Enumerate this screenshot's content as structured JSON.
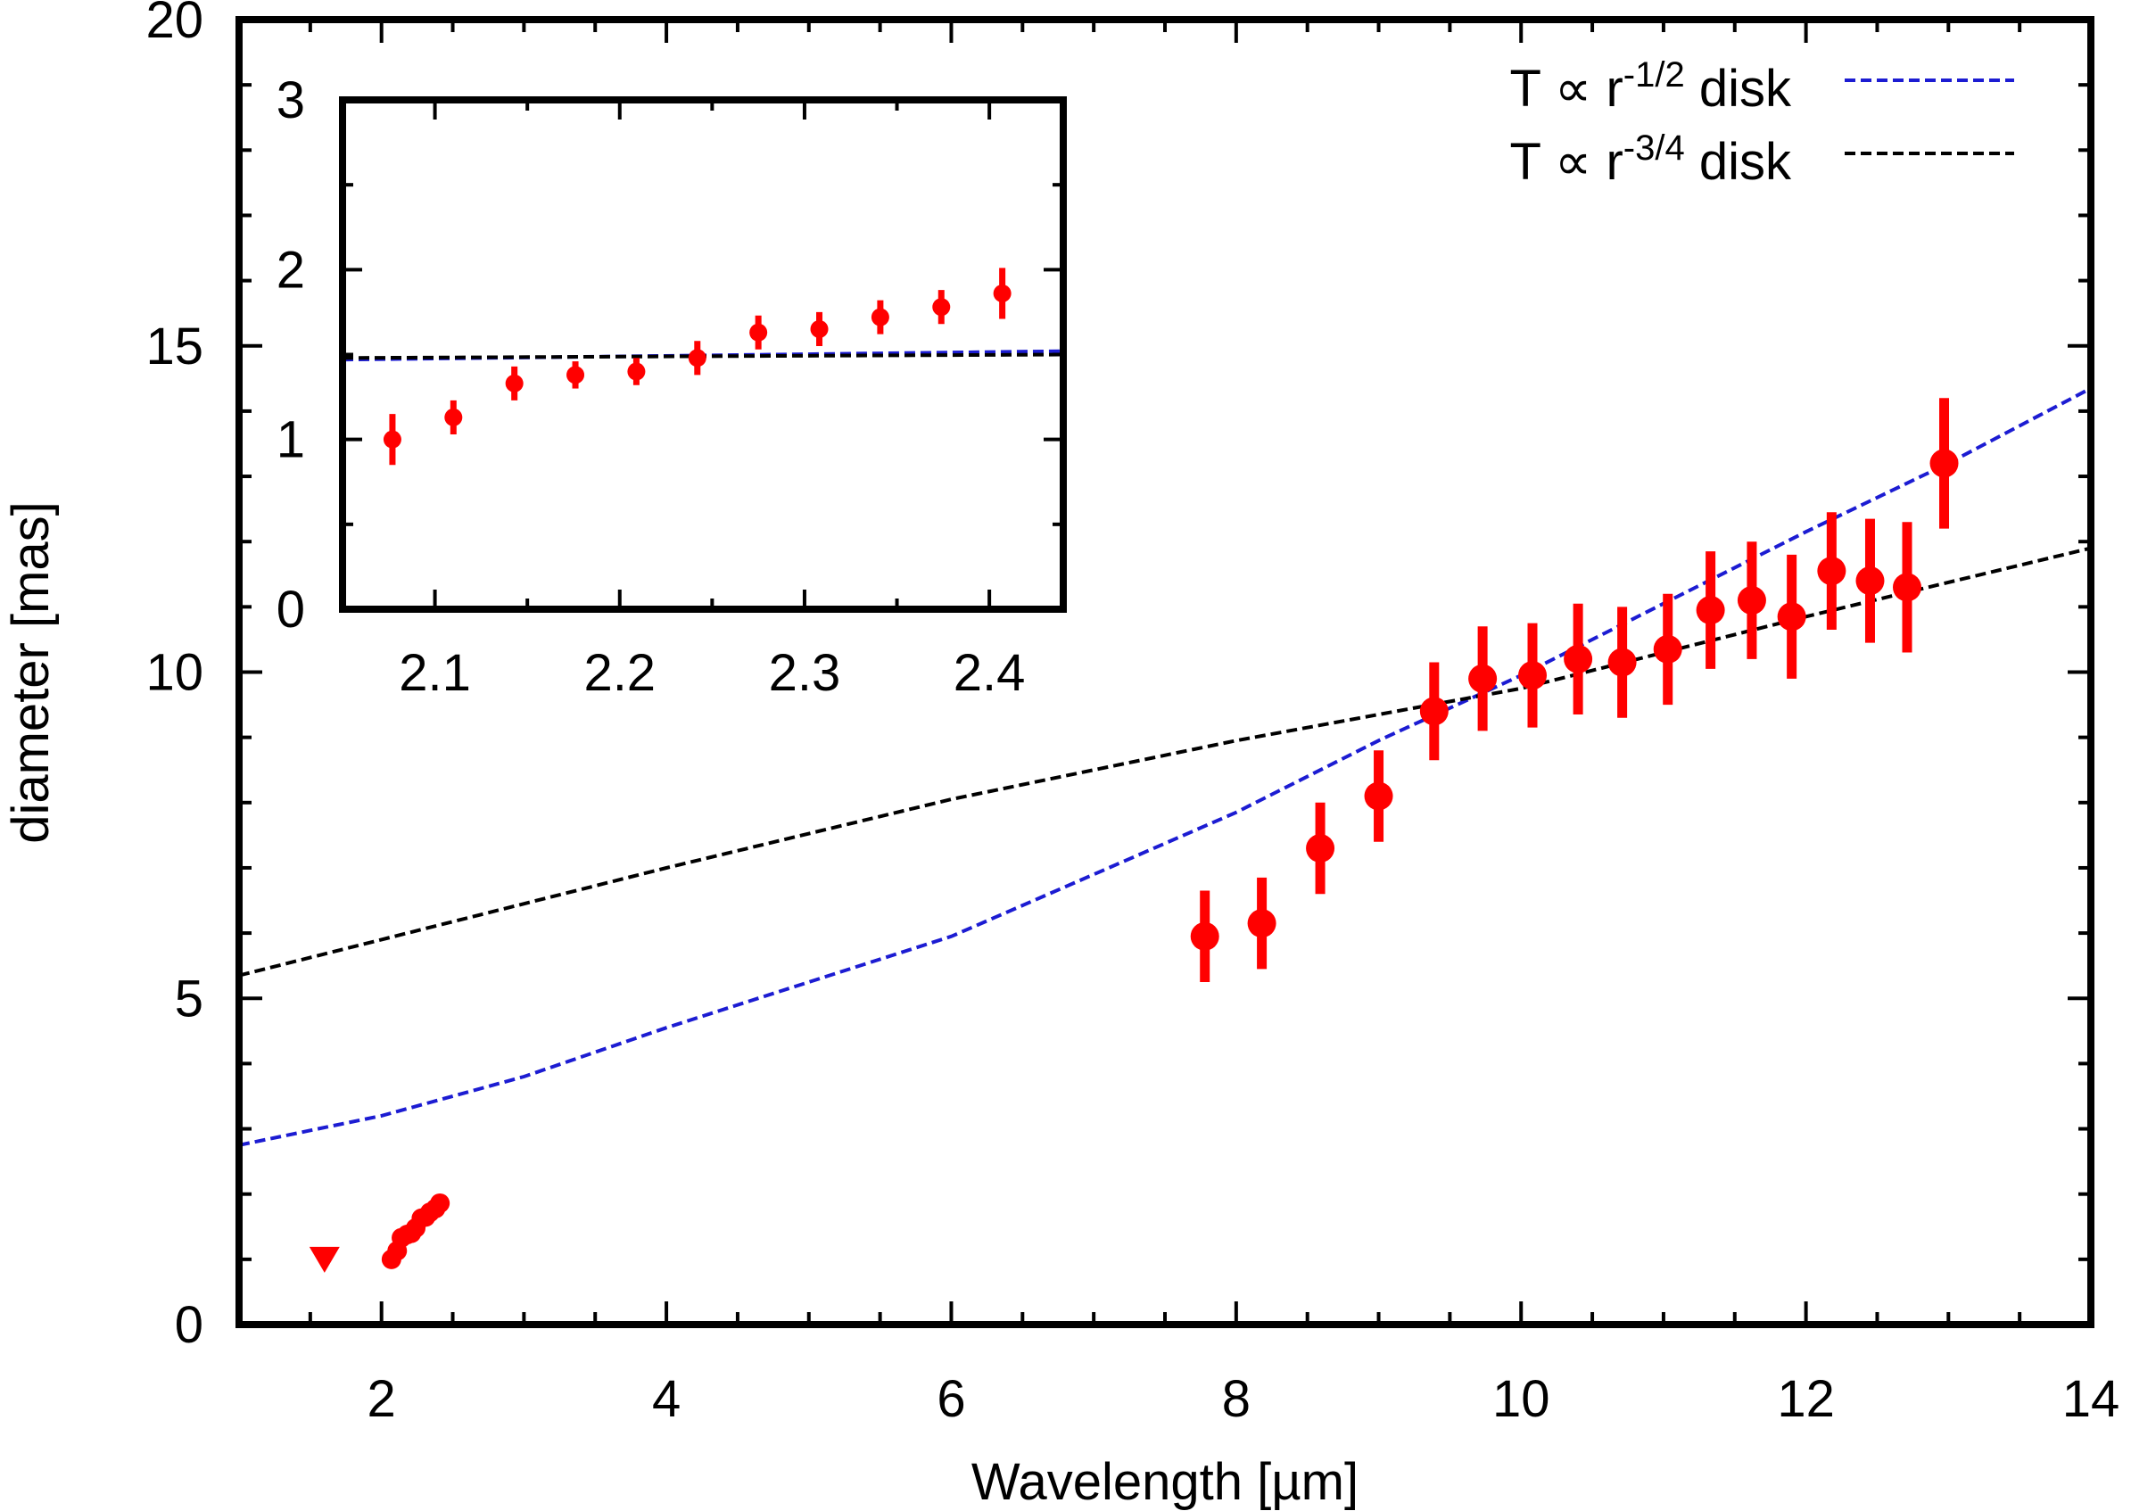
{
  "chart_data": [
    {
      "type": "scatter",
      "title": "",
      "xlabel": "Wavelength [µm]",
      "ylabel": "diameter [mas]",
      "xlim": [
        1.0,
        14.0
      ],
      "ylim": [
        0,
        20
      ],
      "xticks": [
        2,
        4,
        6,
        8,
        10,
        12,
        14
      ],
      "yticks": [
        0,
        5,
        10,
        15,
        20
      ],
      "grid": false,
      "legend_position": "top-right",
      "colors": {
        "points": "#ff0000",
        "model_half": "#1c1cd2",
        "model_three_quarter": "#000000",
        "frame": "#000000"
      },
      "series": [
        {
          "name": "T ∝ r^-1/2 disk",
          "kind": "dashed-line",
          "x": [
            1.0,
            2,
            3,
            4,
            5,
            6,
            7,
            8,
            9,
            10,
            11,
            12,
            13,
            14
          ],
          "y": [
            2.75,
            3.2,
            3.8,
            4.55,
            5.25,
            5.95,
            6.9,
            7.85,
            8.95,
            9.95,
            11.05,
            12.15,
            13.2,
            14.35
          ]
        },
        {
          "name": "T ∝ r^-3/4 disk",
          "kind": "dashed-line",
          "x": [
            1.0,
            2,
            4,
            6,
            8,
            10,
            12,
            14
          ],
          "y": [
            5.35,
            5.9,
            7.0,
            8.05,
            8.95,
            9.75,
            10.85,
            11.9
          ]
        },
        {
          "kind": "points-with-error-bars",
          "x": [
            7.78,
            8.18,
            8.59,
            9.0,
            9.39,
            9.73,
            10.08,
            10.4,
            10.71,
            11.03,
            11.33,
            11.62,
            11.9,
            12.18,
            12.45,
            12.71,
            12.97
          ],
          "y": [
            5.95,
            6.15,
            7.3,
            8.1,
            9.4,
            9.9,
            9.95,
            10.2,
            10.15,
            10.35,
            10.95,
            11.1,
            10.85,
            11.55,
            11.4,
            11.3,
            13.2
          ],
          "yerr": [
            0.7,
            0.7,
            0.7,
            0.7,
            0.75,
            0.8,
            0.8,
            0.85,
            0.85,
            0.85,
            0.9,
            0.9,
            0.95,
            0.9,
            0.95,
            1.0,
            1.0
          ]
        },
        {
          "kind": "points",
          "x": [
            2.07,
            2.11,
            2.14,
            2.18,
            2.21,
            2.24,
            2.28,
            2.31,
            2.34,
            2.38,
            2.41
          ],
          "y": [
            1.0,
            1.13,
            1.33,
            1.38,
            1.4,
            1.48,
            1.63,
            1.65,
            1.72,
            1.78,
            1.86
          ]
        },
        {
          "kind": "upper-limit",
          "x": [
            1.6
          ],
          "y": [
            1.0
          ]
        }
      ]
    },
    {
      "type": "scatter",
      "title": "",
      "xlabel": "",
      "ylabel": "",
      "xlim": [
        2.05,
        2.44
      ],
      "ylim": [
        0,
        3
      ],
      "xticks": [
        2.1,
        2.2,
        2.3,
        2.4
      ],
      "yticks": [
        0,
        1,
        2,
        3
      ],
      "grid": false,
      "legend_position": "none",
      "series": [
        {
          "kind": "dashed-line",
          "x": [
            2.05,
            2.44
          ],
          "y": [
            1.47,
            1.52
          ],
          "color": "#1c1cd2"
        },
        {
          "kind": "dashed-line",
          "x": [
            2.05,
            2.44
          ],
          "y": [
            1.48,
            1.5
          ],
          "color": "#000000"
        },
        {
          "kind": "points-with-error-bars",
          "x": [
            2.077,
            2.11,
            2.143,
            2.176,
            2.209,
            2.242,
            2.275,
            2.308,
            2.341,
            2.374,
            2.407
          ],
          "y": [
            1.0,
            1.13,
            1.33,
            1.38,
            1.4,
            1.48,
            1.63,
            1.65,
            1.72,
            1.78,
            1.86
          ],
          "yerr": [
            0.15,
            0.1,
            0.1,
            0.08,
            0.08,
            0.1,
            0.1,
            0.1,
            0.1,
            0.1,
            0.15
          ]
        }
      ]
    }
  ]
}
